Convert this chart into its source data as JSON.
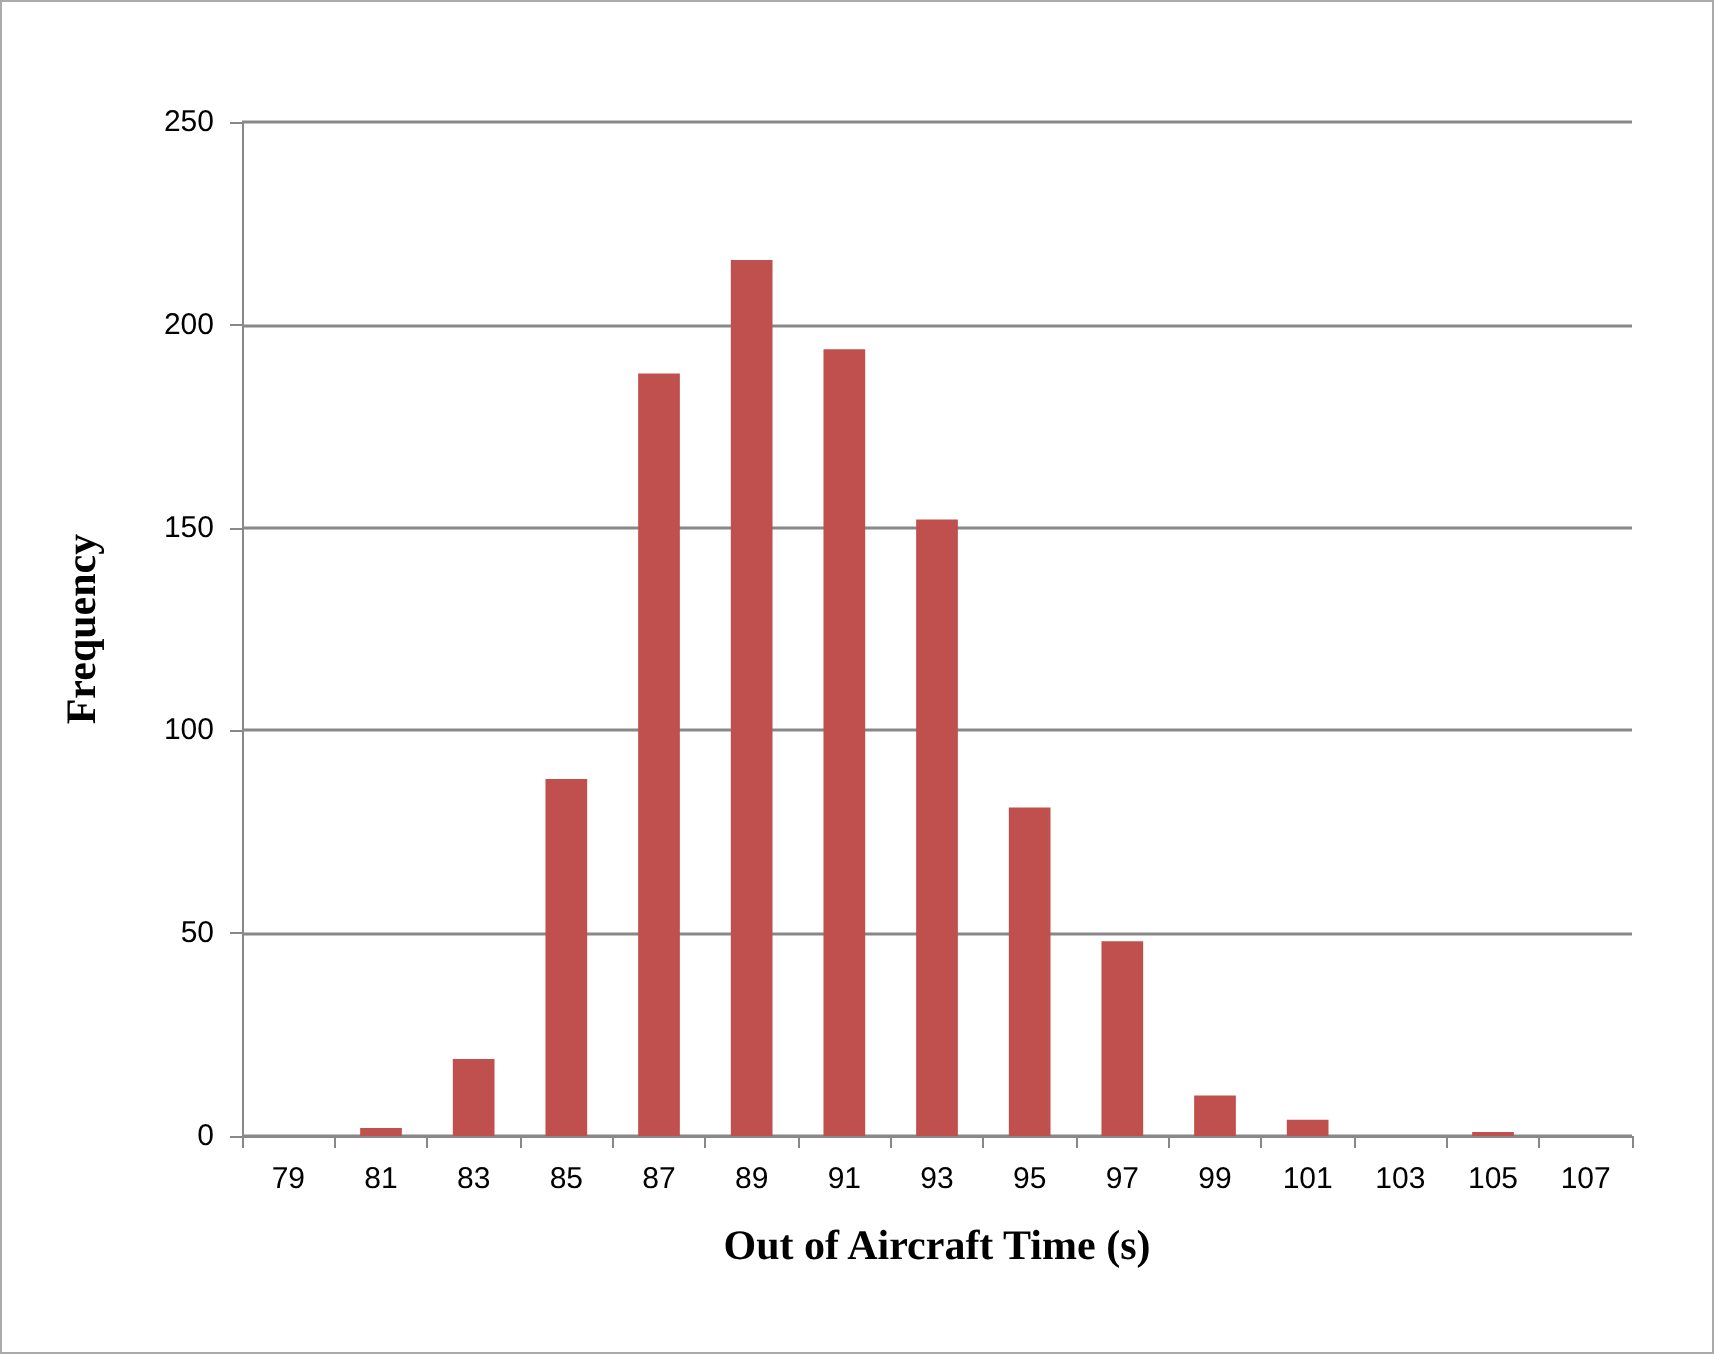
{
  "chart_data": {
    "type": "bar",
    "xlabel": "Out of Aircraft Time (s)",
    "ylabel": "Frequency",
    "categories": [
      "79",
      "81",
      "83",
      "85",
      "87",
      "89",
      "91",
      "93",
      "95",
      "97",
      "99",
      "101",
      "103",
      "105",
      "107"
    ],
    "values": [
      0,
      2,
      19,
      88,
      188,
      216,
      194,
      152,
      81,
      48,
      10,
      4,
      0,
      1,
      0
    ],
    "color": "#c0504d",
    "ylim": [
      0,
      250
    ],
    "yticks": [
      0,
      50,
      100,
      150,
      200,
      250
    ],
    "grid": "y"
  }
}
